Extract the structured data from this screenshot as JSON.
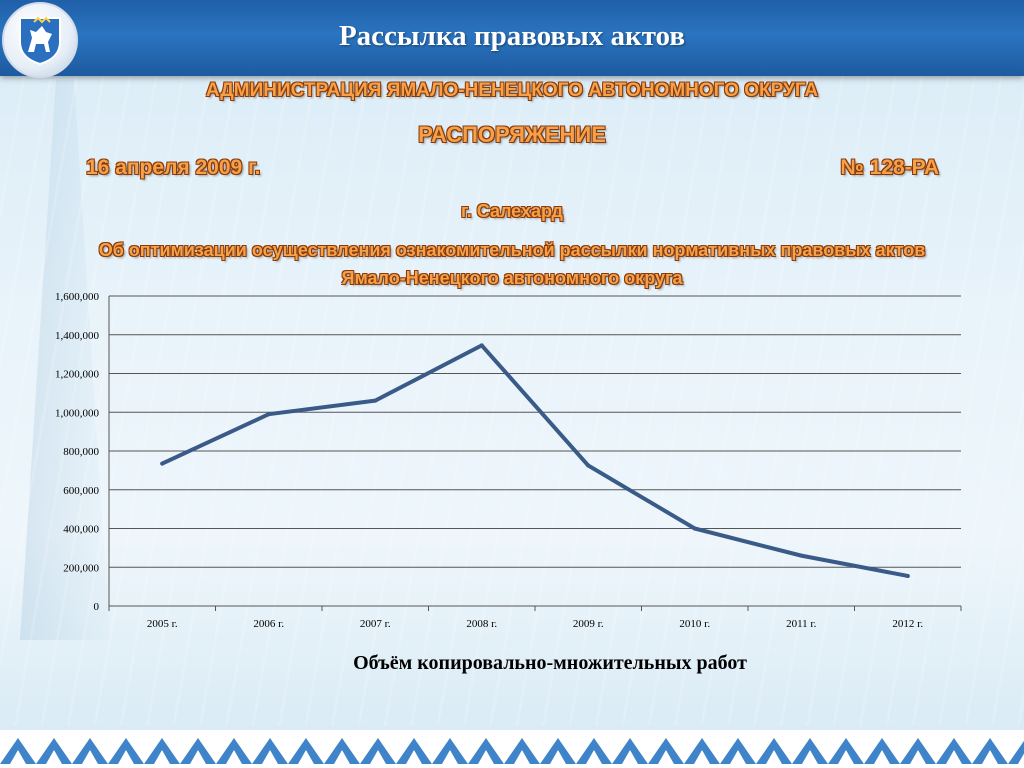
{
  "header": {
    "title": "Рассылка правовых актов"
  },
  "emblem": {
    "icon": "yamal-coat-of-arms-icon"
  },
  "document": {
    "authority": "АДМИНИСТРАЦИЯ ЯМАЛО-НЕНЕЦКОГО АВТОНОМНОГО ОКРУГА",
    "type": "РАСПОРЯЖЕНИЕ",
    "date": "16 апреля 2009 г.",
    "number": "№ 128-РА",
    "city": "г. Салехард",
    "subject_line1": "Об оптимизации осуществления ознакомительной рассылки нормативных правовых актов",
    "subject_line2": "Ямало-Ненецкого автономного округа"
  },
  "colors": {
    "header": "#2b74c0",
    "line": "#3a5a88",
    "accent_text": "#f6a14a"
  },
  "chart_data": {
    "type": "line",
    "categories": [
      "2005 г.",
      "2006 г.",
      "2007 г.",
      "2008 г.",
      "2009 г.",
      "2010 г.",
      "2011 г.",
      "2012 г."
    ],
    "values": [
      735000,
      990000,
      1060000,
      1345000,
      725000,
      400000,
      260000,
      155000
    ],
    "y_ticks": [
      "0",
      "200,000",
      "400,000",
      "600,000",
      "800,000",
      "1,000,000",
      "1,200,000",
      "1,400,000",
      "1,600,000"
    ],
    "ylim": [
      0,
      1600000
    ],
    "grid": true,
    "title": "Объём копировально-множительных работ"
  }
}
